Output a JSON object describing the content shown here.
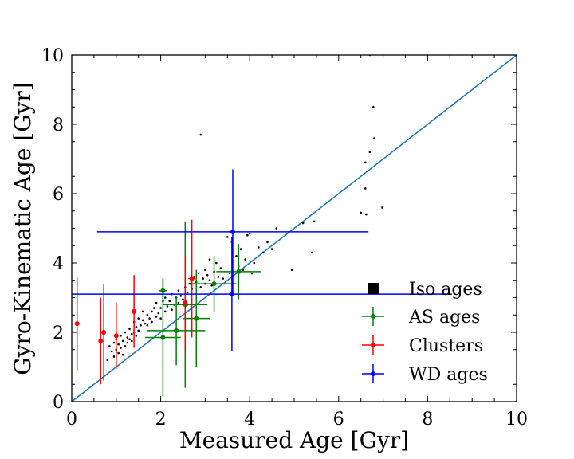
{
  "chart_data": {
    "type": "scatter",
    "title": "",
    "xlabel": "Measured Age [Gyr]",
    "ylabel": "Gyro-Kinematic Age [Gyr]",
    "xlim": [
      0,
      10
    ],
    "ylim": [
      0,
      10
    ],
    "xticks": [
      0,
      2,
      4,
      6,
      8,
      10
    ],
    "yticks": [
      0,
      2,
      4,
      6,
      8,
      10
    ],
    "grid": false,
    "legend_position": "lower-right",
    "reference_line": {
      "label": "one-to-one",
      "color": "#1f77b4",
      "x": [
        0,
        10
      ],
      "y": [
        0,
        10
      ]
    },
    "series": [
      {
        "name": "Iso ages",
        "color": "#000000",
        "points": [
          [
            0.8,
            1.2
          ],
          [
            0.85,
            1.6
          ],
          [
            0.9,
            1.45
          ],
          [
            0.95,
            1.7
          ],
          [
            0.95,
            1.3
          ],
          [
            1.0,
            1.5
          ],
          [
            1.0,
            1.8
          ],
          [
            1.05,
            1.4
          ],
          [
            1.05,
            1.65
          ],
          [
            1.1,
            1.55
          ],
          [
            1.1,
            1.9
          ],
          [
            1.15,
            1.75
          ],
          [
            1.15,
            1.35
          ],
          [
            1.2,
            1.6
          ],
          [
            1.2,
            2.0
          ],
          [
            1.25,
            1.85
          ],
          [
            1.25,
            1.7
          ],
          [
            1.3,
            1.8
          ],
          [
            1.3,
            2.1
          ],
          [
            1.35,
            1.95
          ],
          [
            1.35,
            1.75
          ],
          [
            1.4,
            2.0
          ],
          [
            1.4,
            2.3
          ],
          [
            1.45,
            2.15
          ],
          [
            1.45,
            1.9
          ],
          [
            1.5,
            2.05
          ],
          [
            1.5,
            2.4
          ],
          [
            1.55,
            2.2
          ],
          [
            1.6,
            2.35
          ],
          [
            1.6,
            2.6
          ],
          [
            1.65,
            2.25
          ],
          [
            1.7,
            2.5
          ],
          [
            1.7,
            2.2
          ],
          [
            1.75,
            2.4
          ],
          [
            1.8,
            2.6
          ],
          [
            1.8,
            2.3
          ],
          [
            1.85,
            2.7
          ],
          [
            1.9,
            2.45
          ],
          [
            1.9,
            2.85
          ],
          [
            1.95,
            2.55
          ],
          [
            2.0,
            2.7
          ],
          [
            2.0,
            2.4
          ],
          [
            2.05,
            2.9
          ],
          [
            2.1,
            2.6
          ],
          [
            2.1,
            3.0
          ],
          [
            2.15,
            2.75
          ],
          [
            2.2,
            2.9
          ],
          [
            2.25,
            2.65
          ],
          [
            2.25,
            3.1
          ],
          [
            2.3,
            2.8
          ],
          [
            2.35,
            3.0
          ],
          [
            2.4,
            3.2
          ],
          [
            2.4,
            2.85
          ],
          [
            2.45,
            3.05
          ],
          [
            2.5,
            2.95
          ],
          [
            2.55,
            3.3
          ],
          [
            2.6,
            3.15
          ],
          [
            2.6,
            2.8
          ],
          [
            2.65,
            3.4
          ],
          [
            2.7,
            3.25
          ],
          [
            2.75,
            3.6
          ],
          [
            2.8,
            3.45
          ],
          [
            2.85,
            3.7
          ],
          [
            2.9,
            3.3
          ],
          [
            2.95,
            3.55
          ],
          [
            3.0,
            3.8
          ],
          [
            3.0,
            3.4
          ],
          [
            3.05,
            3.65
          ],
          [
            3.1,
            4.1
          ],
          [
            3.1,
            3.5
          ],
          [
            3.15,
            3.35
          ],
          [
            3.2,
            3.75
          ],
          [
            3.25,
            4.0
          ],
          [
            3.3,
            3.6
          ],
          [
            3.35,
            3.85
          ],
          [
            3.4,
            3.55
          ],
          [
            3.5,
            4.75
          ],
          [
            3.55,
            3.7
          ],
          [
            3.6,
            4.6
          ],
          [
            3.7,
            4.2
          ],
          [
            3.75,
            3.9
          ],
          [
            3.8,
            4.4
          ],
          [
            3.85,
            3.8
          ],
          [
            3.9,
            4.1
          ],
          [
            3.95,
            4.8
          ],
          [
            4.0,
            4.85
          ],
          [
            4.05,
            3.7
          ],
          [
            4.1,
            4.0
          ],
          [
            4.2,
            4.45
          ],
          [
            4.3,
            4.3
          ],
          [
            4.4,
            4.6
          ],
          [
            4.5,
            4.4
          ],
          [
            4.6,
            5.0
          ],
          [
            4.95,
            3.8
          ],
          [
            5.2,
            5.15
          ],
          [
            5.4,
            4.3
          ],
          [
            5.45,
            5.2
          ],
          [
            2.9,
            7.7
          ],
          [
            6.5,
            5.45
          ],
          [
            6.6,
            6.9
          ],
          [
            6.6,
            6.15
          ],
          [
            6.62,
            5.4
          ],
          [
            6.7,
            7.2
          ],
          [
            6.7,
            10.0
          ],
          [
            6.78,
            8.5
          ],
          [
            6.8,
            7.6
          ],
          [
            6.98,
            5.6
          ]
        ]
      },
      {
        "name": "AS ages",
        "color": "#008000",
        "points": [
          {
            "x": 2.05,
            "y": 3.2,
            "xerr": 0.1,
            "yerr": 0.35
          },
          {
            "x": 2.05,
            "y": 1.85,
            "xerr": 0.4,
            "yerr": 1.7
          },
          {
            "x": 2.35,
            "y": 2.05,
            "xerr": 0.65,
            "yerr": 1.0
          },
          {
            "x": 2.55,
            "y": 2.8,
            "xerr": 0.5,
            "yerr": 2.4
          },
          {
            "x": 2.8,
            "y": 2.4,
            "xerr": 0.3,
            "yerr": 1.4
          },
          {
            "x": 3.2,
            "y": 3.4,
            "xerr": 0.5,
            "yerr": 0.8
          },
          {
            "x": 3.75,
            "y": 3.75,
            "xerr": 0.5,
            "yerr": 0.8
          }
        ]
      },
      {
        "name": "Clusters",
        "color": "#ff0000",
        "points": [
          {
            "x": 0.12,
            "y": 2.25,
            "xerr": 0.02,
            "yerr": 1.35
          },
          {
            "x": 0.65,
            "y": 1.75,
            "xerr": 0.05,
            "yerr": 1.25
          },
          {
            "x": 0.72,
            "y": 2.0,
            "xerr": 0.05,
            "yerr": 1.4
          },
          {
            "x": 1.0,
            "y": 1.9,
            "xerr": 0.05,
            "yerr": 0.95
          },
          {
            "x": 1.4,
            "y": 2.6,
            "xerr": 0.05,
            "yerr": 1.05
          },
          {
            "x": 2.55,
            "y": 2.85,
            "xerr": 0.05,
            "yerr": 1.35
          },
          {
            "x": 2.7,
            "y": 3.55,
            "xerr": 0.08,
            "yerr": 1.7
          }
        ]
      },
      {
        "name": "WD ages",
        "color": "#0000ff",
        "points": [
          {
            "x": 3.6,
            "y": 3.1,
            "xerr": 4.95,
            "yerr": 1.65
          },
          {
            "x": 3.62,
            "y": 4.9,
            "xerr": 3.05,
            "yerr": 1.8
          }
        ]
      }
    ]
  }
}
